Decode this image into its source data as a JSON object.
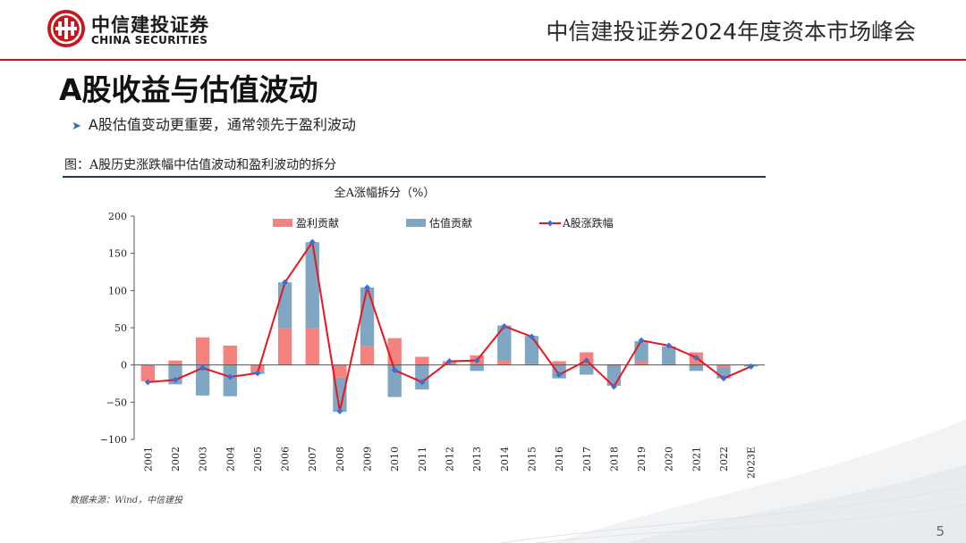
{
  "header": {
    "logo_cn": "中信建投证券",
    "logo_en": "CHINA SECURITIES",
    "event_title": "中信建投证券2024年度资本市场峰会"
  },
  "page_title": "A股收益与估值波动",
  "bullet": "A股估值变动更重要，通常领先于盈利波动",
  "figure_caption": "图：A股历史涨跌幅中估值波动和盈利波动的拆分",
  "source": "数据来源：Wind，中信建投",
  "page_number": "5",
  "colors": {
    "brand_red": "#c8161d",
    "earnings": "#f4827f",
    "valuation": "#7fa6c2",
    "line": "#e8171f",
    "marker": "#3b6fd8"
  },
  "chart_data": {
    "type": "bar",
    "title": "全A涨幅拆分（%）",
    "categories": [
      "2001",
      "2002",
      "2003",
      "2004",
      "2005",
      "2006",
      "2007",
      "2008",
      "2009",
      "2010",
      "2011",
      "2012",
      "2013",
      "2014",
      "2015",
      "2016",
      "2017",
      "2018",
      "2019",
      "2020",
      "2021",
      "2022",
      "2023E"
    ],
    "stacked": true,
    "ylim": [
      -100,
      200
    ],
    "yticks": [
      -100,
      -50,
      0,
      50,
      100,
      150,
      200
    ],
    "ytick_labels": [
      "−100",
      "−50",
      "0",
      "50",
      "100",
      "150",
      "200"
    ],
    "legend_position": "top",
    "grid": false,
    "series": [
      {
        "name": "盈利贡献",
        "type": "bar",
        "color": "#f4827f",
        "values": [
          -22,
          6,
          37,
          26,
          -8,
          49,
          49,
          -17,
          25,
          36,
          11,
          3,
          13,
          6,
          1,
          5,
          17,
          1,
          5,
          2,
          17,
          -4,
          0
        ]
      },
      {
        "name": "估值贡献",
        "type": "bar",
        "color": "#7fa6c2",
        "values": [
          0,
          -26,
          -41,
          -42,
          -4,
          62,
          116,
          -46,
          79,
          -43,
          -33,
          2,
          -8,
          47,
          38,
          -18,
          -13,
          -28,
          27,
          23,
          -8,
          -14,
          -2
        ]
      },
      {
        "name": "A股涨跌幅",
        "type": "line",
        "color": "#e8171f",
        "values": [
          -23,
          -20,
          -4,
          -16,
          -11,
          111,
          165,
          -62,
          104,
          -7,
          -23,
          5,
          6,
          52,
          38,
          -13,
          6,
          -29,
          33,
          26,
          10,
          -18,
          -2
        ]
      }
    ]
  }
}
